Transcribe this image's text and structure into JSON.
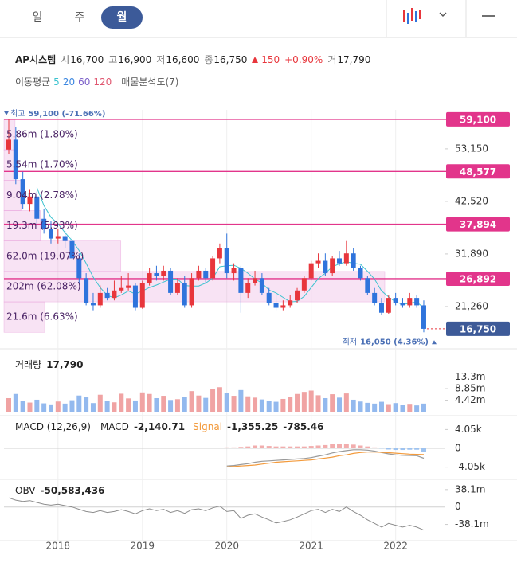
{
  "tabs": [
    "일",
    "주",
    "월"
  ],
  "selected": 2,
  "header": {
    "name": "AP시스템",
    "items": [
      {
        "label": "시",
        "value": "16,700"
      },
      {
        "label": "고",
        "value": "16,900"
      },
      {
        "label": "저",
        "value": "16,600"
      },
      {
        "label": "종",
        "value": "16,750"
      }
    ],
    "change": "150",
    "change_pct": "+0.90%",
    "volume_label": "거",
    "volume": "17,790"
  },
  "chart_data": [
    {
      "type": "candlestick",
      "categories": [
        null,
        null,
        null,
        null,
        null,
        null,
        null,
        "2018",
        null,
        null,
        null,
        null,
        null,
        null,
        null,
        null,
        null,
        null,
        null,
        "2019",
        null,
        null,
        null,
        null,
        null,
        null,
        null,
        null,
        null,
        null,
        null,
        "2020",
        null,
        null,
        null,
        null,
        null,
        null,
        null,
        null,
        null,
        null,
        null,
        "2021",
        null,
        null,
        null,
        null,
        null,
        null,
        null,
        null,
        null,
        null,
        null,
        "2022",
        null,
        null,
        null,
        null
      ],
      "open": [
        53000,
        55000,
        47000,
        42000,
        43500,
        39000,
        37000,
        35000,
        35500,
        34500,
        31000,
        27000,
        22000,
        21500,
        24000,
        23000,
        24500,
        25000,
        25500,
        21000,
        26000,
        28000,
        27500,
        28500,
        24000,
        26000,
        21500,
        27000,
        28500,
        27000,
        31000,
        33000,
        28000,
        29000,
        24000,
        26000,
        27000,
        24000,
        22000,
        21000,
        21500,
        22500,
        24500,
        27000,
        30000,
        30500,
        28000,
        31000,
        30000,
        32000,
        29000,
        27000,
        24000,
        22000,
        20000,
        23000,
        22000,
        21500,
        23000,
        21500
      ],
      "high": [
        59100,
        57500,
        48500,
        45000,
        44500,
        41000,
        38500,
        37000,
        36500,
        35500,
        32000,
        28000,
        24000,
        25500,
        25000,
        26500,
        27500,
        28000,
        26000,
        26500,
        29000,
        29500,
        29500,
        29000,
        27000,
        27500,
        28000,
        29500,
        29000,
        31500,
        34000,
        36000,
        30000,
        29500,
        27000,
        28500,
        28000,
        25000,
        23500,
        22500,
        23500,
        25000,
        27500,
        30500,
        32000,
        32000,
        31500,
        32500,
        34500,
        33000,
        29500,
        27500,
        25000,
        23000,
        23500,
        24000,
        23000,
        24000,
        23500,
        22500
      ],
      "low": [
        52000,
        46000,
        41000,
        40500,
        38000,
        36000,
        34000,
        34000,
        33000,
        30500,
        26000,
        21500,
        20500,
        21000,
        22500,
        22500,
        24000,
        24500,
        20500,
        20800,
        25500,
        26500,
        26500,
        23500,
        23500,
        21000,
        21000,
        26500,
        26000,
        26500,
        30000,
        27000,
        26500,
        20000,
        23000,
        25500,
        23500,
        21500,
        20500,
        20500,
        21000,
        22000,
        24000,
        26500,
        29000,
        27500,
        27500,
        29500,
        29500,
        28500,
        26500,
        23500,
        21500,
        19500,
        19800,
        21500,
        21000,
        21000,
        21000,
        16050
      ],
      "close": [
        55000,
        47000,
        42000,
        43500,
        39000,
        37000,
        35000,
        35500,
        34500,
        31000,
        27000,
        22000,
        21500,
        24000,
        23000,
        24500,
        25000,
        25500,
        21000,
        26000,
        28000,
        27500,
        28500,
        24000,
        26000,
        21500,
        27000,
        28500,
        27000,
        31000,
        33000,
        28000,
        29000,
        24000,
        26000,
        27000,
        24000,
        22000,
        21000,
        21500,
        22500,
        24500,
        27000,
        30000,
        30500,
        28000,
        31000,
        30000,
        32000,
        29000,
        27000,
        24000,
        22000,
        20000,
        23000,
        22000,
        21500,
        23000,
        21500,
        16750
      ],
      "up_color": "#e8363c",
      "down_color": "#2f74dc",
      "ylim": [
        14000,
        60700
      ],
      "yticks": [
        {
          "value": 53150,
          "label": "53,150"
        },
        {
          "value": 42520,
          "label": "42,520"
        },
        {
          "value": 31890,
          "label": "31,890"
        },
        {
          "value": 21260,
          "label": "21,260"
        }
      ],
      "price_lines": [
        {
          "value": 59100,
          "label": "59,100"
        },
        {
          "value": 48577,
          "label": "48,577"
        },
        {
          "value": 37894,
          "label": "37,894"
        },
        {
          "value": 26892,
          "label": "26,892"
        }
      ],
      "price_line_color": "#e2358b",
      "current_price": {
        "value": 16750,
        "label": "16,750",
        "color": "#3d5a98"
      },
      "high_marker": {
        "label": "최고",
        "text": "59,100 (-71.66%)"
      },
      "low_marker": {
        "label": "최저",
        "text": "16,050 (4.36%)"
      },
      "moving_averages": {
        "title": "이동평균",
        "series": [
          {
            "name": "5",
            "color": "#3cc3cf",
            "values": [
              null,
              null,
              null,
              null,
              45300,
              41700,
              39300,
              38000,
              36200,
              34600,
              32600,
              30000,
              27200,
              25100,
              23500,
              23000,
              23600,
              24400,
              23800,
              24400,
              25100,
              25600,
              26200,
              26800,
              26800,
              25500,
              25400,
              25400,
              26000,
              27000,
              29300,
              29500,
              29600,
              29000,
              28000,
              26800,
              26000,
              24600,
              24000,
              23100,
              22200,
              22300,
              23300,
              25100,
              26900,
              28000,
              29300,
              29900,
              30300,
              30000,
              29800,
              28400,
              26800,
              24400,
              23200,
              22200,
              21700,
              21900,
              22200,
              20950
            ]
          },
          {
            "name": "20",
            "color": "#3a86e0"
          },
          {
            "name": "60",
            "color": "#7b5fc9"
          },
          {
            "name": "120",
            "color": "#e0566f"
          }
        ]
      },
      "volume_profile": {
        "title": "매물분석도(7)",
        "color": "#e79bd8",
        "values": [
          5.86,
          5.54,
          9.04,
          19.3,
          62.0,
          202,
          21.6
        ],
        "value_labels": [
          "5.86m (1.80%)",
          "5.54m (1.70%)",
          "9.04m (2.78%)",
          "19.3m (5.93%)",
          "62.0m (19.07%)",
          "202m (62.08%)",
          "21.6m (6.63%)"
        ]
      }
    },
    {
      "type": "bar",
      "title": "거래량",
      "latest_text": "17,790",
      "values": [
        5.2,
        6.8,
        4.1,
        3.5,
        4.6,
        3.2,
        2.8,
        3.9,
        3.1,
        4.4,
        6.2,
        5.5,
        3.3,
        6.5,
        4.2,
        3.6,
        6.9,
        5.1,
        4.3,
        7.4,
        6.8,
        5.2,
        6.1,
        4.5,
        4.8,
        5.6,
        7.9,
        6.2,
        5.3,
        8.6,
        9.4,
        7.2,
        6.1,
        8.3,
        5.9,
        5.4,
        4.7,
        4.1,
        3.8,
        4.9,
        5.7,
        6.8,
        7.6,
        8.1,
        6.3,
        5.2,
        6.7,
        5.4,
        7.0,
        4.6,
        3.9,
        3.4,
        3.1,
        3.8,
        2.9,
        3.3,
        2.6,
        3.0,
        2.4,
        3.1
      ],
      "up_color": "#f0a3a3",
      "down_color": "#93b9ee",
      "ylim": [
        0,
        21.4
      ],
      "yticks": [
        {
          "value": 13.3,
          "label": "13.3m"
        },
        {
          "value": 8.85,
          "label": "8.85m"
        },
        {
          "value": 4.42,
          "label": "4.42m"
        }
      ]
    },
    {
      "type": "macd",
      "title": "MACD (12,26,9)",
      "series": [
        {
          "name": "MACD",
          "color": "#9a9a9a",
          "last_label": "-2,140.71",
          "values": [
            null,
            null,
            null,
            null,
            null,
            null,
            null,
            null,
            null,
            null,
            null,
            null,
            null,
            null,
            null,
            null,
            null,
            null,
            null,
            null,
            null,
            null,
            null,
            null,
            null,
            null,
            null,
            null,
            null,
            null,
            null,
            -3800,
            -3700,
            -3500,
            -3300,
            -3000,
            -2800,
            -2700,
            -2600,
            -2500,
            -2400,
            -2300,
            -2200,
            -2000,
            -1700,
            -1400,
            -1000,
            -700,
            -500,
            -300,
            -300,
            -400,
            -600,
            -900,
            -1200,
            -1400,
            -1500,
            -1550,
            -1600,
            -2140.71
          ]
        },
        {
          "name": "Signal",
          "color": "#f39a3b",
          "last_label": "-1,355.25",
          "values": [
            null,
            null,
            null,
            null,
            null,
            null,
            null,
            null,
            null,
            null,
            null,
            null,
            null,
            null,
            null,
            null,
            null,
            null,
            null,
            null,
            null,
            null,
            null,
            null,
            null,
            null,
            null,
            null,
            null,
            null,
            null,
            -4000,
            -3900,
            -3800,
            -3700,
            -3600,
            -3400,
            -3200,
            -3000,
            -2900,
            -2800,
            -2700,
            -2600,
            -2500,
            -2300,
            -2100,
            -1900,
            -1600,
            -1400,
            -1100,
            -900,
            -800,
            -800,
            -850,
            -950,
            -1050,
            -1150,
            -1250,
            -1300,
            -1355.25
          ]
        }
      ],
      "histogram": {
        "last_label": "-785.46",
        "positive_color": "#f2adad",
        "negative_color": "#9ec3f0",
        "values": [
          null,
          null,
          null,
          null,
          null,
          null,
          null,
          null,
          null,
          null,
          null,
          null,
          null,
          null,
          null,
          null,
          null,
          null,
          null,
          null,
          null,
          null,
          null,
          null,
          null,
          null,
          null,
          null,
          null,
          null,
          null,
          200,
          200,
          300,
          400,
          600,
          600,
          500,
          400,
          400,
          400,
          400,
          400,
          500,
          600,
          700,
          900,
          900,
          900,
          800,
          600,
          400,
          200,
          -50,
          -250,
          -350,
          -350,
          -300,
          -300,
          -785.46
        ]
      },
      "ylim": [
        -6000,
        6000
      ],
      "yticks": [
        {
          "value": 4050,
          "label": "4.05k"
        },
        0,
        {
          "value": -4050,
          "label": "-4.05k"
        }
      ]
    },
    {
      "type": "line",
      "title": "OBV",
      "last_label": "-50,583,436",
      "color": "#8c8c8c",
      "values": [
        20,
        15,
        12,
        14,
        10,
        6,
        4,
        6,
        3,
        0,
        -5,
        -10,
        -12,
        -8,
        -12,
        -10,
        -6,
        -10,
        -15,
        -8,
        -4,
        -8,
        -5,
        -12,
        -8,
        -14,
        -6,
        -4,
        -8,
        -2,
        2,
        -10,
        -8,
        -25,
        -18,
        -15,
        -22,
        -28,
        -35,
        -32,
        -28,
        -22,
        -15,
        -8,
        -5,
        -12,
        -5,
        -10,
        0,
        -10,
        -18,
        -28,
        -36,
        -44,
        -36,
        -40,
        -44,
        -40,
        -44,
        -50.583436
      ],
      "ylim": [
        -72,
        50
      ],
      "yticks": [
        {
          "value": 38.1,
          "label": "38.1m"
        },
        0,
        {
          "value": -38.1,
          "label": "-38.1m"
        }
      ]
    }
  ]
}
